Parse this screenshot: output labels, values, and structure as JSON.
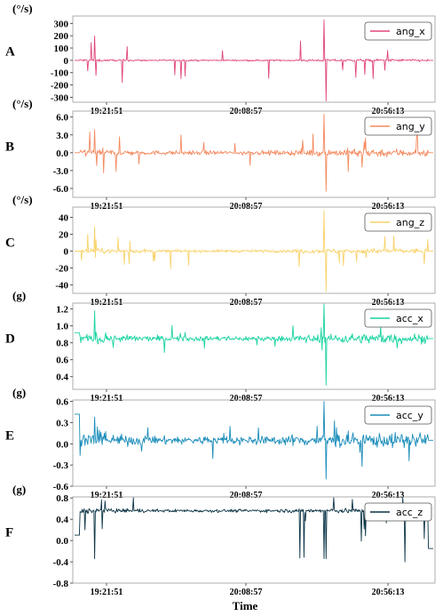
{
  "xlabel": "Time",
  "x_tick_labels": [
    "19:21:51",
    "20:08:57",
    "20:56:13"
  ],
  "chart_data": [
    {
      "panel": "A",
      "type": "line",
      "unit": "(°/s)",
      "series": [
        {
          "name": "ang_x",
          "color": "#e0457b"
        }
      ],
      "yticks": [
        "300",
        "200",
        "100",
        "0",
        "-100",
        "-200",
        "-300"
      ],
      "ylim": [
        -340,
        360
      ],
      "signal": {
        "noise": 7,
        "quiet": 1.5,
        "spike": 180,
        "extreme": 330,
        "bias": 0
      }
    },
    {
      "panel": "B",
      "type": "line",
      "unit": "(°/s)",
      "series": [
        {
          "name": "ang_y",
          "color": "#f4895f"
        }
      ],
      "yticks": [
        "6.0",
        "3.0",
        "0.0",
        "-3.0",
        "-6.0"
      ],
      "ylim": [
        -7.5,
        7.0
      ],
      "signal": {
        "noise": 0.45,
        "quiet": 0.1,
        "spike": 3.5,
        "extreme": 6.5,
        "bias": 0
      }
    },
    {
      "panel": "C",
      "type": "line",
      "unit": "(°/s)",
      "series": [
        {
          "name": "ang_z",
          "color": "#f8d26a"
        }
      ],
      "yticks": [
        "40",
        "20",
        "0",
        "-20",
        "-40"
      ],
      "ylim": [
        -50,
        52
      ],
      "signal": {
        "noise": 2.0,
        "quiet": 0.5,
        "spike": 22,
        "extreme": 48,
        "bias": 0
      }
    },
    {
      "panel": "D",
      "type": "line",
      "unit": "(g)",
      "series": [
        {
          "name": "acc_x",
          "color": "#19d3a2"
        }
      ],
      "yticks": [
        "1.2",
        "1.0",
        "0.8",
        "0.6",
        "0.4"
      ],
      "ylim": [
        0.25,
        1.27
      ],
      "signal": {
        "noise": 0.035,
        "quiet": 0.01,
        "spike": 0.15,
        "extreme": 0.55,
        "bias": 0.85,
        "flat_start": 0.92
      }
    },
    {
      "panel": "E",
      "type": "line",
      "unit": "(g)",
      "series": [
        {
          "name": "acc_y",
          "color": "#1a8cba"
        }
      ],
      "yticks": [
        "0.6",
        "0.3",
        "0.0",
        "-0.3",
        "-0.6"
      ],
      "ylim": [
        -0.6,
        0.62
      ],
      "signal": {
        "noise": 0.06,
        "quiet": 0.02,
        "spike": 0.35,
        "extreme": 0.55,
        "bias": 0.05,
        "flat_start": 0.42
      }
    },
    {
      "panel": "F",
      "type": "line",
      "unit": "(g)",
      "series": [
        {
          "name": "acc_z",
          "color": "#0c3446"
        }
      ],
      "yticks": [
        "0.8",
        "0.4",
        "0.0",
        "-0.4",
        "-0.8"
      ],
      "ylim": [
        -0.8,
        0.82
      ],
      "signal": {
        "noise": 0.03,
        "quiet": 0.01,
        "spike": 0.45,
        "extreme": 0.9,
        "bias": 0.56,
        "flat_start": 0.1,
        "dips": true
      }
    }
  ]
}
